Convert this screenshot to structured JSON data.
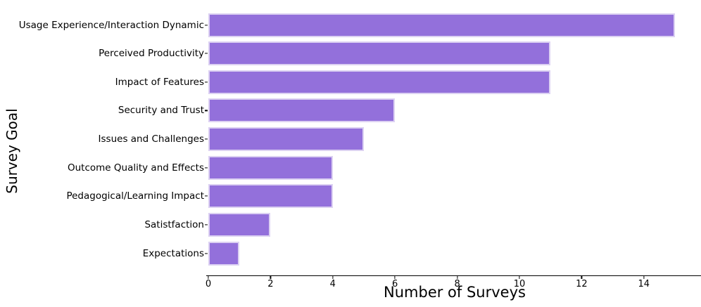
{
  "chart_data": {
    "type": "bar",
    "orientation": "horizontal",
    "title": "",
    "categories": [
      "Usage Experience/Interaction Dynamic",
      "Perceived Productivity",
      "Impact of Features",
      "Security and Trust",
      "Issues and Challenges",
      "Outcome Quality and Effects",
      "Pedagogical/Learning Impact",
      "Satistfaction",
      "Expectations"
    ],
    "values": [
      15,
      11,
      11,
      6,
      5,
      4,
      4,
      2,
      1
    ],
    "xlabel": "Number of Surveys",
    "ylabel": "Survey Goal",
    "xticks": [
      0,
      2,
      4,
      6,
      8,
      10,
      12,
      14
    ],
    "xlim": [
      0,
      15.9
    ],
    "grid": false,
    "legend": "none",
    "bar_color": "#9370DB",
    "bar_edge_color": "#DCD1F2",
    "axis_color": "#000000",
    "text_color": "#000000"
  }
}
